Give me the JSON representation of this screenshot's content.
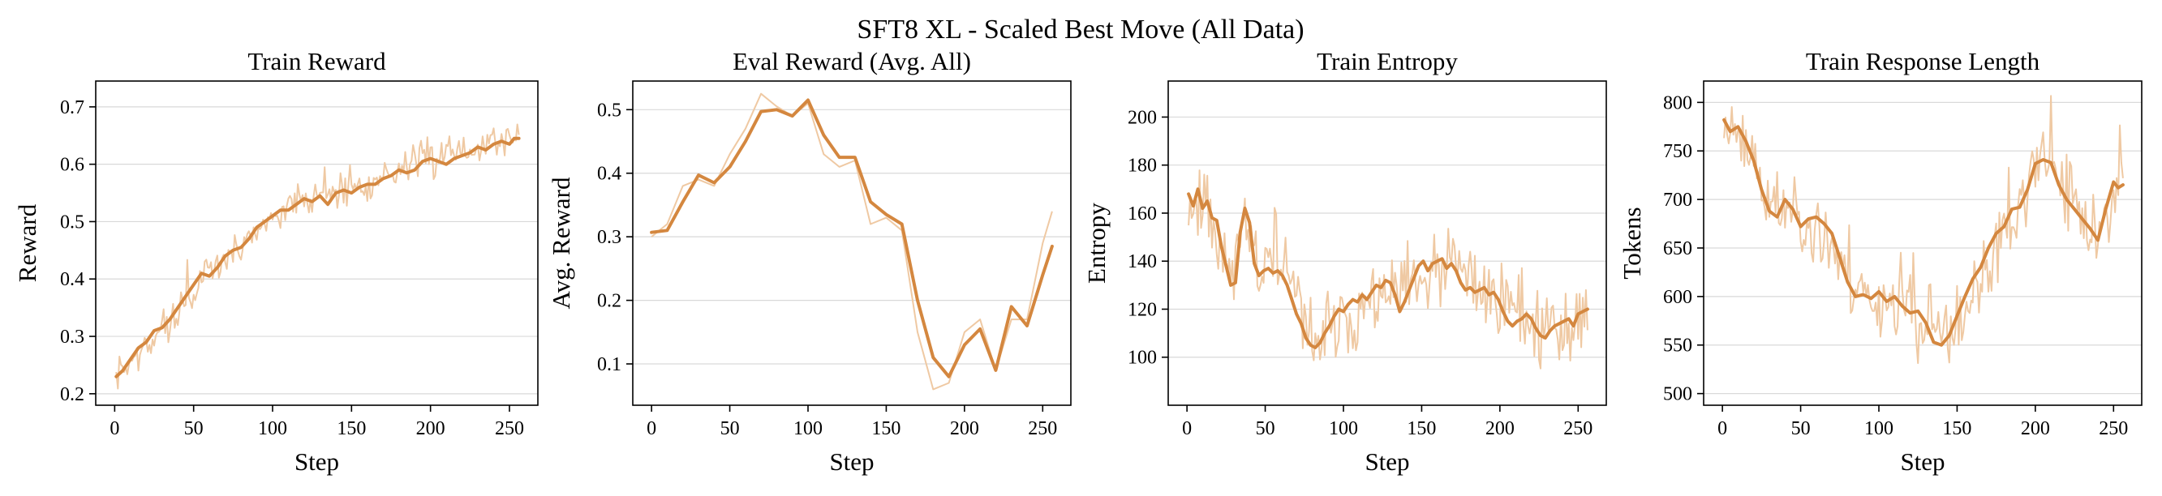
{
  "figure": {
    "suptitle": "SFT8 XL - Scaled Best Move (All Data)"
  },
  "colors": {
    "line": "#d4873f",
    "raw": "#efc9a3",
    "grid": "#d9d9d9",
    "axis": "#000000"
  },
  "chart_data": [
    {
      "type": "line",
      "title": "Train Reward",
      "xlabel": "Step",
      "ylabel": "Reward",
      "xlim": [
        -12,
        268
      ],
      "ylim": [
        0.18,
        0.745
      ],
      "xticks": [
        0,
        50,
        100,
        150,
        200,
        250
      ],
      "yticks": [
        0.2,
        0.3,
        0.4,
        0.5,
        0.6,
        0.7
      ],
      "yfmt": 1,
      "grid": "horizontal",
      "raw": {
        "name": "raw",
        "start": 1,
        "end": 256,
        "seed": 7,
        "noise": 0.045,
        "knots": [
          [
            1,
            0.23
          ],
          [
            20,
            0.28
          ],
          [
            40,
            0.34
          ],
          [
            60,
            0.41
          ],
          [
            80,
            0.46
          ],
          [
            100,
            0.51
          ],
          [
            120,
            0.54
          ],
          [
            150,
            0.56
          ],
          [
            175,
            0.585
          ],
          [
            200,
            0.61
          ],
          [
            225,
            0.63
          ],
          [
            256,
            0.65
          ]
        ]
      },
      "smooth": {
        "name": "smoothed",
        "x": [
          1,
          5,
          10,
          15,
          20,
          25,
          30,
          35,
          40,
          45,
          50,
          55,
          60,
          65,
          70,
          75,
          80,
          85,
          90,
          95,
          100,
          105,
          110,
          115,
          120,
          125,
          130,
          135,
          140,
          145,
          150,
          155,
          160,
          165,
          170,
          175,
          180,
          185,
          190,
          195,
          200,
          205,
          210,
          215,
          220,
          225,
          230,
          235,
          240,
          245,
          250,
          253,
          256
        ],
        "y": [
          0.23,
          0.24,
          0.26,
          0.28,
          0.29,
          0.31,
          0.315,
          0.33,
          0.35,
          0.37,
          0.39,
          0.41,
          0.405,
          0.42,
          0.44,
          0.45,
          0.455,
          0.47,
          0.49,
          0.5,
          0.51,
          0.52,
          0.52,
          0.53,
          0.54,
          0.535,
          0.545,
          0.53,
          0.55,
          0.555,
          0.55,
          0.56,
          0.565,
          0.565,
          0.575,
          0.58,
          0.59,
          0.585,
          0.59,
          0.605,
          0.61,
          0.605,
          0.6,
          0.61,
          0.615,
          0.62,
          0.63,
          0.625,
          0.635,
          0.64,
          0.635,
          0.645,
          0.645
        ]
      }
    },
    {
      "type": "line",
      "title": "Eval Reward (Avg. All)",
      "xlabel": "Step",
      "ylabel": "Avg. Reward",
      "xlim": [
        -12,
        268
      ],
      "ylim": [
        0.035,
        0.545
      ],
      "xticks": [
        0,
        50,
        100,
        150,
        200,
        250
      ],
      "yticks": [
        0.1,
        0.2,
        0.3,
        0.4,
        0.5
      ],
      "yfmt": 1,
      "grid": "horizontal",
      "raw": {
        "name": "raw",
        "x": [
          0,
          10,
          20,
          30,
          40,
          50,
          60,
          70,
          80,
          90,
          100,
          110,
          120,
          130,
          140,
          150,
          160,
          170,
          180,
          190,
          200,
          210,
          220,
          230,
          240,
          250,
          256
        ],
        "y": [
          0.3,
          0.32,
          0.38,
          0.39,
          0.38,
          0.43,
          0.47,
          0.525,
          0.505,
          0.49,
          0.51,
          0.43,
          0.41,
          0.42,
          0.32,
          0.33,
          0.31,
          0.15,
          0.06,
          0.07,
          0.15,
          0.17,
          0.09,
          0.17,
          0.17,
          0.29,
          0.34
        ]
      },
      "smooth": {
        "name": "smoothed",
        "x": [
          0,
          10,
          20,
          30,
          40,
          50,
          60,
          70,
          80,
          90,
          100,
          110,
          120,
          130,
          140,
          150,
          160,
          170,
          180,
          190,
          200,
          210,
          220,
          230,
          240,
          250,
          256
        ],
        "y": [
          0.307,
          0.31,
          0.355,
          0.397,
          0.385,
          0.41,
          0.45,
          0.497,
          0.5,
          0.49,
          0.515,
          0.46,
          0.425,
          0.425,
          0.355,
          0.335,
          0.32,
          0.2,
          0.11,
          0.08,
          0.13,
          0.155,
          0.09,
          0.19,
          0.16,
          0.24,
          0.285
        ]
      }
    },
    {
      "type": "line",
      "title": "Train Entropy",
      "xlabel": "Step",
      "ylabel": "Entropy",
      "xlim": [
        -12,
        268
      ],
      "ylim": [
        80,
        215
      ],
      "xticks": [
        0,
        50,
        100,
        150,
        200,
        250
      ],
      "yticks": [
        100,
        120,
        140,
        160,
        180,
        200
      ],
      "yfmt": 0,
      "grid": "horizontal",
      "raw": {
        "name": "raw",
        "start": 1,
        "end": 256,
        "seed": 11,
        "noise": 24,
        "knots": [
          [
            1,
            165
          ],
          [
            15,
            160
          ],
          [
            28,
            135
          ],
          [
            36,
            160
          ],
          [
            45,
            140
          ],
          [
            60,
            137
          ],
          [
            70,
            125
          ],
          [
            82,
            104
          ],
          [
            100,
            115
          ],
          [
            120,
            125
          ],
          [
            135,
            125
          ],
          [
            150,
            130
          ],
          [
            170,
            138
          ],
          [
            190,
            128
          ],
          [
            210,
            122
          ],
          [
            225,
            112
          ],
          [
            240,
            110
          ],
          [
            256,
            120
          ]
        ]
      },
      "smooth": {
        "name": "smoothed",
        "x": [
          1,
          4,
          7,
          10,
          13,
          16,
          19,
          22,
          25,
          28,
          31,
          34,
          37,
          40,
          43,
          46,
          49,
          52,
          55,
          58,
          61,
          64,
          67,
          70,
          73,
          76,
          79,
          82,
          85,
          88,
          91,
          94,
          97,
          100,
          103,
          106,
          109,
          112,
          115,
          118,
          121,
          124,
          127,
          130,
          133,
          136,
          139,
          142,
          145,
          148,
          151,
          154,
          157,
          160,
          163,
          166,
          169,
          172,
          175,
          178,
          181,
          184,
          187,
          190,
          193,
          196,
          199,
          202,
          205,
          208,
          211,
          214,
          217,
          220,
          223,
          226,
          229,
          232,
          235,
          238,
          241,
          244,
          247,
          250,
          253,
          256
        ],
        "y": [
          168,
          163,
          170,
          162,
          165,
          158,
          157,
          146,
          138,
          130,
          131,
          152,
          162,
          156,
          139,
          134,
          136,
          137,
          135,
          136,
          134,
          130,
          124,
          118,
          114,
          108,
          105,
          104,
          106,
          110,
          113,
          117,
          120,
          119,
          122,
          124,
          123,
          126,
          124,
          127,
          130,
          129,
          132,
          131,
          126,
          119,
          123,
          128,
          133,
          138,
          140,
          136,
          139,
          140,
          141,
          137,
          139,
          136,
          131,
          128,
          129,
          127,
          128,
          129,
          126,
          127,
          124,
          119,
          115,
          113,
          115,
          116,
          118,
          116,
          112,
          109,
          108,
          111,
          113,
          114,
          115,
          116,
          113,
          118,
          119,
          120
        ]
      }
    },
    {
      "type": "line",
      "title": "Train Response Length",
      "xlabel": "Step",
      "ylabel": "Tokens",
      "xlim": [
        -12,
        268
      ],
      "ylim": [
        488,
        822
      ],
      "xticks": [
        0,
        50,
        100,
        150,
        200,
        250
      ],
      "yticks": [
        500,
        550,
        600,
        650,
        700,
        750,
        800
      ],
      "yfmt": 0,
      "grid": "horizontal",
      "raw": {
        "name": "raw",
        "start": 1,
        "end": 256,
        "seed": 23,
        "noise": 55,
        "knots": [
          [
            1,
            775
          ],
          [
            15,
            760
          ],
          [
            30,
            690
          ],
          [
            40,
            700
          ],
          [
            60,
            670
          ],
          [
            75,
            640
          ],
          [
            85,
            605
          ],
          [
            100,
            600
          ],
          [
            120,
            585
          ],
          [
            135,
            560
          ],
          [
            145,
            555
          ],
          [
            160,
            600
          ],
          [
            175,
            640
          ],
          [
            190,
            690
          ],
          [
            205,
            745
          ],
          [
            215,
            720
          ],
          [
            230,
            680
          ],
          [
            240,
            670
          ],
          [
            256,
            715
          ]
        ]
      },
      "smooth": {
        "name": "smoothed",
        "x": [
          1,
          5,
          10,
          15,
          20,
          25,
          30,
          35,
          40,
          45,
          50,
          55,
          60,
          65,
          70,
          75,
          80,
          85,
          90,
          95,
          100,
          105,
          110,
          115,
          120,
          125,
          130,
          135,
          140,
          145,
          150,
          155,
          160,
          165,
          170,
          175,
          180,
          185,
          190,
          195,
          200,
          205,
          210,
          215,
          220,
          225,
          230,
          235,
          240,
          245,
          250,
          253,
          256
        ],
        "y": [
          782,
          770,
          775,
          760,
          740,
          710,
          688,
          682,
          700,
          690,
          672,
          680,
          682,
          675,
          665,
          640,
          615,
          600,
          602,
          598,
          605,
          595,
          600,
          590,
          583,
          585,
          573,
          553,
          550,
          560,
          580,
          600,
          618,
          630,
          650,
          665,
          672,
          690,
          692,
          710,
          737,
          741,
          738,
          715,
          700,
          690,
          680,
          670,
          658,
          690,
          718,
          712,
          715
        ]
      }
    }
  ]
}
